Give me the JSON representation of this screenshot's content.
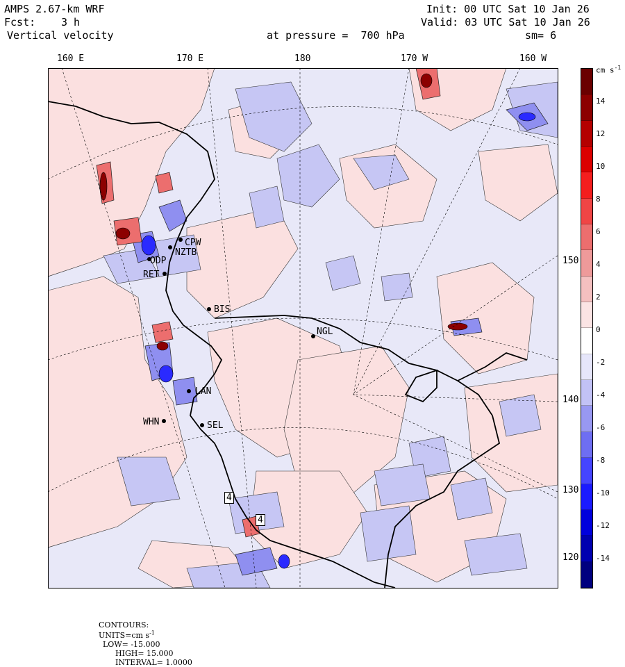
{
  "header": {
    "model": "AMPS 2.67-km WRF",
    "forecast_label": "Fcst:",
    "forecast_value": "3 h",
    "field": "Vertical velocity",
    "init": "Init: 00 UTC Sat 10 Jan 26",
    "valid": "Valid: 03 UTC Sat 10 Jan 26",
    "pressure": "at pressure =  700 hPa",
    "smoothing": "sm= 6"
  },
  "longitude_labels": [
    "160 E",
    "170 E",
    "180",
    "170 W",
    "160 W"
  ],
  "right_labels": [
    "150 W",
    "140 W",
    "130 W",
    "120 W"
  ],
  "stations": [
    {
      "id": "CPW",
      "lon": 167.1,
      "lat": -77.7
    },
    {
      "id": "NZTB",
      "lon": 166.7,
      "lat": -77.85
    },
    {
      "id": "ODP",
      "lon": 166.0,
      "lat": -78.0
    },
    {
      "id": "RET",
      "lon": 164.6,
      "lat": -78.7
    },
    {
      "id": "BIS",
      "lon": 170.9,
      "lat": -80.5
    },
    {
      "id": "NGL",
      "lon": 180.0,
      "lat": -81.5
    },
    {
      "id": "LAN",
      "lon": 170.0,
      "lat": -83.5
    },
    {
      "id": "SEL",
      "lon": 170.0,
      "lat": -85.0
    },
    {
      "id": "WHN",
      "lon": 165.0,
      "lat": -84.5
    }
  ],
  "colorbar": {
    "units_label": "cm s",
    "units_exponent": "-1",
    "tick_labels": [
      "14",
      "12",
      "10",
      "8",
      "6",
      "4",
      "2",
      "0",
      "-2",
      "-4",
      "-6",
      "-8",
      "-10",
      "-12",
      "-14"
    ],
    "colors": [
      "#00007f",
      "#0000b0",
      "#0000dd",
      "#1a1aff",
      "#4545ff",
      "#6e6ef2",
      "#9898f2",
      "#c2c2f6",
      "#e6e6fa",
      "#ffffff",
      "#fbe4e4",
      "#f4c0c0",
      "#ee9a9a",
      "#ec6e6e",
      "#f04545",
      "#f41e1e",
      "#dc0000",
      "#b40000",
      "#8c0000",
      "#6a0000"
    ]
  },
  "sector_marks": [
    "4",
    "4"
  ],
  "footer": {
    "contours": "CONTOURS:",
    "units_prefix": "UNITS=cm s",
    "units_exp": "-1",
    "low": "LOW= -15.000",
    "high": "HIGH= 15.000",
    "interval": "INTERVAL= 1.0000"
  }
}
